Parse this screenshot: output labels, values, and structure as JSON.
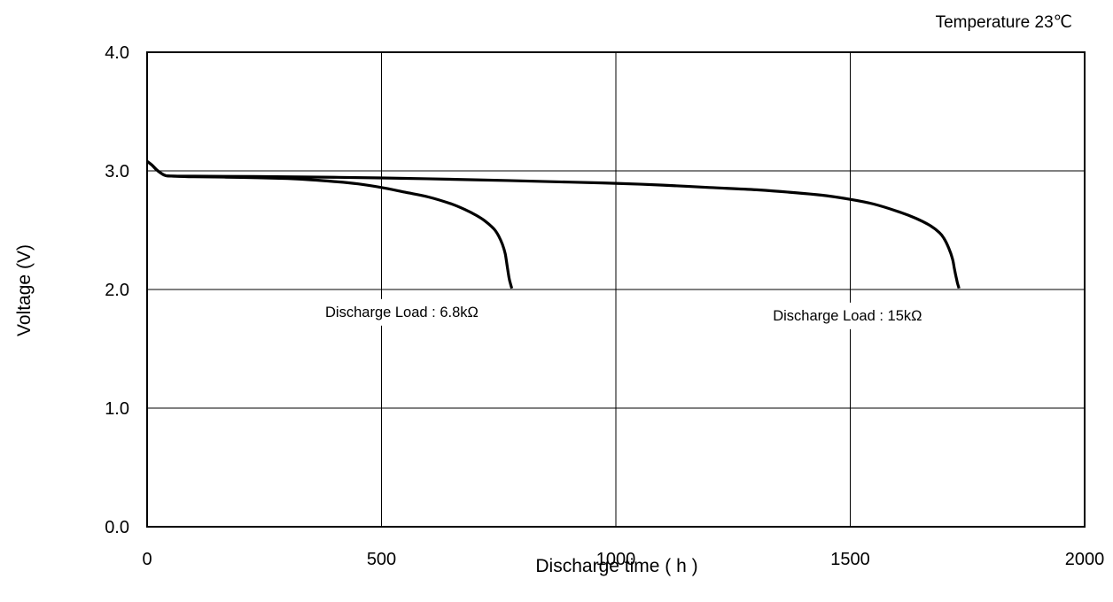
{
  "chart_data": {
    "type": "line",
    "title": "",
    "annotation_top_right": "Temperature 23℃",
    "xlabel": "Discharge time ( h )",
    "ylabel": "Voltage (V)",
    "xlim": [
      0,
      2000
    ],
    "ylim": [
      0.0,
      4.0
    ],
    "x_ticks": [
      0,
      500,
      1000,
      1500,
      2000
    ],
    "x_tick_labels": [
      "0",
      "500",
      "1000",
      "1500",
      "2000"
    ],
    "y_ticks": [
      0.0,
      1.0,
      2.0,
      3.0,
      4.0
    ],
    "y_tick_labels": [
      "0.0",
      "1.0",
      "2.0",
      "3.0",
      "4.0"
    ],
    "grid": true,
    "legend": "none",
    "line_color": "#000000",
    "series": [
      {
        "label": "Discharge Load  :  6.8kΩ",
        "x": [
          0,
          10,
          20,
          30,
          40,
          60,
          100,
          200,
          300,
          350,
          400,
          450,
          500,
          550,
          600,
          650,
          680,
          700,
          720,
          740,
          750,
          758,
          764,
          768,
          772,
          775,
          778
        ],
        "y": [
          3.08,
          3.05,
          3.01,
          2.98,
          2.96,
          2.955,
          2.95,
          2.945,
          2.935,
          2.925,
          2.91,
          2.89,
          2.86,
          2.82,
          2.78,
          2.72,
          2.67,
          2.63,
          2.58,
          2.51,
          2.45,
          2.38,
          2.3,
          2.2,
          2.1,
          2.05,
          2.01
        ]
      },
      {
        "label": "Discharge Load  :  15kΩ",
        "x": [
          0,
          10,
          20,
          30,
          40,
          60,
          100,
          300,
          500,
          700,
          900,
          1000,
          1100,
          1200,
          1300,
          1400,
          1450,
          1500,
          1550,
          1600,
          1640,
          1670,
          1690,
          1700,
          1710,
          1718,
          1722,
          1726,
          1729,
          1732
        ],
        "y": [
          3.08,
          3.05,
          3.01,
          2.98,
          2.96,
          2.955,
          2.955,
          2.95,
          2.94,
          2.925,
          2.905,
          2.895,
          2.88,
          2.86,
          2.84,
          2.81,
          2.79,
          2.76,
          2.72,
          2.66,
          2.6,
          2.54,
          2.48,
          2.43,
          2.35,
          2.26,
          2.18,
          2.1,
          2.05,
          2.01
        ]
      }
    ],
    "annotations": [
      {
        "text": "Discharge Load  :  6.8kΩ",
        "x": 380,
        "y": 1.77
      },
      {
        "text": "Discharge Load  :  15kΩ",
        "x": 1335,
        "y": 1.74
      }
    ]
  }
}
